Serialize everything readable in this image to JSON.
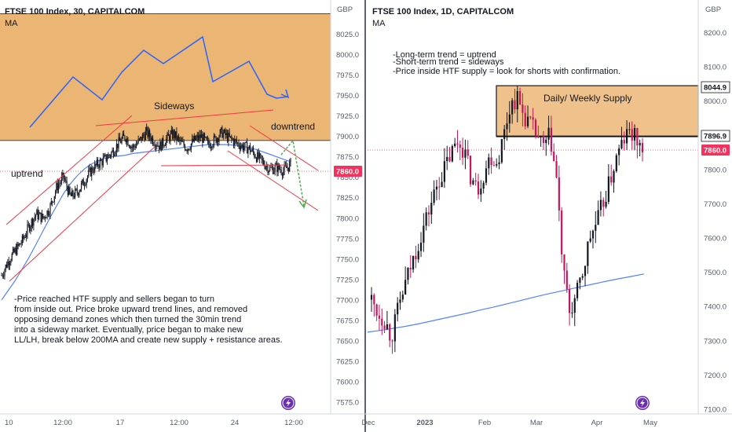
{
  "theme": {
    "supply_zone": "#e8a85a",
    "bull": "#131722",
    "bear": "#c2185b",
    "trend_red": "#f23645",
    "ma_blue": "#2962ff",
    "green_arrow": "#4caf50",
    "price_tag": "#f7315d",
    "axis_text": "#555b66"
  },
  "chart_data": [
    {
      "type": "candlestick",
      "title": "FTSE 100 Index, 30, CAPITALCOM",
      "indicator": "MA",
      "currency": "GBP",
      "ylim": [
        7570,
        8050
      ],
      "y_ticks": [
        7575.0,
        7600.0,
        7625.0,
        7650.0,
        7675.0,
        7700.0,
        7725.0,
        7750.0,
        7775.0,
        7800.0,
        7825.0,
        7850.0,
        7875.0,
        7900.0,
        7925.0,
        7950.0,
        7975.0,
        8000.0,
        8025.0
      ],
      "x_ticks": [
        "10",
        "12:00",
        "17",
        "12:00",
        "24",
        "12:00"
      ],
      "last_price": "7860.0",
      "supply_zone": [
        7895,
        8050
      ],
      "annotations": {
        "sideways": "Sideways",
        "uptrend": "uptrend",
        "downtrend": "downtrend",
        "note": [
          "-Price reached HTF supply and sellers began to turn",
          "from inside out. Price broke upward trend lines, and removed",
          "opposing demand zones which then turned the 30min trend",
          "into a sideway market. Eventually, price began to make new",
          "LL/LH, break below 200MA and create new supply + resistance areas."
        ]
      },
      "close_path": [
        7730,
        7748,
        7760,
        7772,
        7790,
        7805,
        7800,
        7812,
        7838,
        7850,
        7826,
        7832,
        7845,
        7858,
        7866,
        7872,
        7880,
        7892,
        7900,
        7886,
        7894,
        7905,
        7896,
        7888,
        7897,
        7903,
        7892,
        7886,
        7895,
        7900,
        7890,
        7896,
        7905,
        7898,
        7893,
        7888,
        7885,
        7876,
        7868,
        7860,
        7862,
        7858,
        7866
      ],
      "ma_path": [
        7700,
        7712,
        7724,
        7738,
        7752,
        7768,
        7784,
        7800,
        7815,
        7830,
        7842,
        7852,
        7860,
        7866,
        7870,
        7873,
        7875,
        7876,
        7877,
        7879,
        7880,
        7881,
        7882,
        7883,
        7884,
        7885,
        7886,
        7887,
        7888,
        7889,
        7890,
        7890,
        7890,
        7890,
        7889,
        7888,
        7886,
        7884,
        7881,
        7878,
        7875,
        7872,
        7869
      ]
    },
    {
      "type": "candlestick",
      "title": "FTSE 100 Index, 1D, CAPITALCOM",
      "indicator": "MA",
      "currency": "GBP",
      "ylim": [
        7100,
        8300
      ],
      "y_ticks": [
        7100.0,
        7200.0,
        7300.0,
        7400.0,
        7500.0,
        7600.0,
        7700.0,
        7800.0,
        7900.0,
        8000.0,
        8100.0,
        8200.0
      ],
      "x_ticks": [
        "Dec",
        "2023",
        "Feb",
        "Mar",
        "Apr",
        "May"
      ],
      "last_price": "7860.0",
      "level_tags": [
        "8044.9",
        "7896.9"
      ],
      "supply_zone": [
        7896.9,
        8044.9
      ],
      "annotations": {
        "zone_label": "Daily/ Weekly Supply",
        "notes": [
          "-Long-term trend = uptrend",
          "-Short-term trend = sideways",
          "-Price inside HTF supply = look for shorts with confirmation."
        ]
      },
      "close_path": [
        7420,
        7380,
        7360,
        7310,
        7390,
        7460,
        7520,
        7580,
        7640,
        7700,
        7760,
        7800,
        7845,
        7880,
        7860,
        7780,
        7740,
        7790,
        7840,
        7820,
        7900,
        7990,
        8010,
        7960,
        7930,
        7900,
        7860,
        7900,
        7770,
        7500,
        7380,
        7430,
        7500,
        7600,
        7640,
        7700,
        7760,
        7830,
        7880,
        7910,
        7890,
        7860
      ],
      "ma_path": [
        7325,
        7330,
        7336,
        7342,
        7349,
        7357,
        7365,
        7373,
        7381,
        7390,
        7398,
        7407,
        7416,
        7425,
        7434,
        7442,
        7450,
        7458,
        7466,
        7474,
        7481,
        7488,
        7495
      ]
    }
  ]
}
